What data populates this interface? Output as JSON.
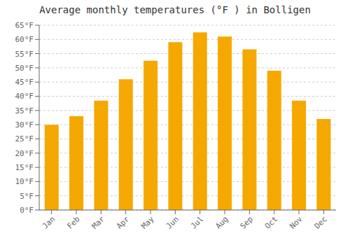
{
  "chart_data": {
    "type": "bar",
    "title": "Average monthly temperatures (°F ) in Bolligen",
    "categories": [
      "Jan",
      "Feb",
      "Mar",
      "Apr",
      "May",
      "Jun",
      "Jul",
      "Aug",
      "Sep",
      "Oct",
      "Nov",
      "Dec"
    ],
    "values": [
      30.0,
      33.0,
      38.5,
      46.0,
      52.5,
      59.0,
      62.5,
      61.0,
      56.5,
      49.0,
      38.5,
      32.0
    ],
    "color": "#F5A800",
    "ylim": [
      0,
      65
    ],
    "yticks": [
      {
        "value": 0,
        "label": "0°F"
      },
      {
        "value": 5,
        "label": "5°F"
      },
      {
        "value": 10,
        "label": "10°F"
      },
      {
        "value": 15,
        "label": "15°F"
      },
      {
        "value": 20,
        "label": "20°F"
      },
      {
        "value": 25,
        "label": "25°F"
      },
      {
        "value": 30,
        "label": "30°F"
      },
      {
        "value": 35,
        "label": "35°F"
      },
      {
        "value": 40,
        "label": "40°F"
      },
      {
        "value": 45,
        "label": "45°F"
      },
      {
        "value": 50,
        "label": "50°F"
      },
      {
        "value": 55,
        "label": "55°F"
      },
      {
        "value": 60,
        "label": "60°F"
      },
      {
        "value": 65,
        "label": "65°F"
      }
    ],
    "grid": true
  }
}
